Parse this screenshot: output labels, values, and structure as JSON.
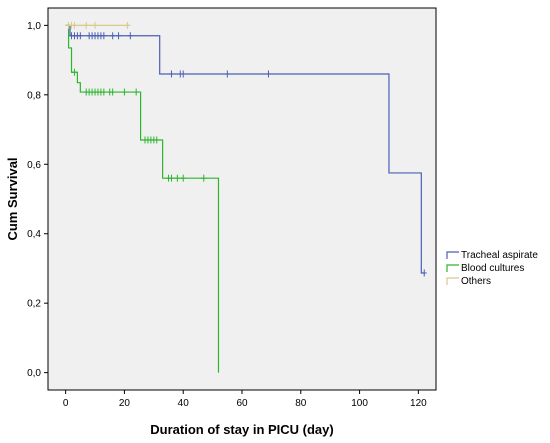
{
  "chart_data": {
    "type": "line",
    "subtype": "kaplan-meier-step",
    "title": "",
    "xlabel": "Duration of stay in PICU (day)",
    "ylabel": "Cum Survival",
    "xlim": [
      -6,
      126
    ],
    "ylim": [
      -0.05,
      1.05
    ],
    "x_ticks": [
      0,
      20,
      40,
      60,
      80,
      100,
      120
    ],
    "x_tick_labels": [
      "0",
      "20",
      "40",
      "60",
      "80",
      "100",
      "120"
    ],
    "y_ticks": [
      0,
      0.2,
      0.4,
      0.6,
      0.8,
      1.0
    ],
    "y_tick_labels": [
      "0,0",
      "0,2",
      "0,4",
      "0,6",
      "0,8",
      "1,0"
    ],
    "grid": false,
    "legend_position": "right",
    "plot_background": "#f0f0f0",
    "series": [
      {
        "name": "Tracheal aspirate",
        "color": "#4a5fb5",
        "steps": [
          [
            0,
            1.0
          ],
          [
            1.5,
            0.97
          ],
          [
            32,
            0.86
          ],
          [
            110,
            0.575
          ],
          [
            121,
            0.287
          ]
        ],
        "x_end": 122,
        "censored": [
          [
            2,
            0.97
          ],
          [
            3,
            0.97
          ],
          [
            4,
            0.97
          ],
          [
            5,
            0.97
          ],
          [
            8,
            0.97
          ],
          [
            9,
            0.97
          ],
          [
            10,
            0.97
          ],
          [
            11,
            0.97
          ],
          [
            12,
            0.97
          ],
          [
            13,
            0.97
          ],
          [
            16,
            0.97
          ],
          [
            18,
            0.97
          ],
          [
            22,
            0.97
          ],
          [
            36,
            0.86
          ],
          [
            39,
            0.86
          ],
          [
            40,
            0.86
          ],
          [
            55,
            0.86
          ],
          [
            69,
            0.86
          ],
          [
            122,
            0.287
          ]
        ]
      },
      {
        "name": "Blood cultures",
        "color": "#2db52d",
        "steps": [
          [
            0,
            1.0
          ],
          [
            1,
            0.935
          ],
          [
            2,
            0.865
          ],
          [
            4,
            0.835
          ],
          [
            5,
            0.808
          ],
          [
            25.5,
            0.67
          ],
          [
            33,
            0.56
          ],
          [
            52,
            0.0
          ]
        ],
        "x_end": 52,
        "censored": [
          [
            3,
            0.865
          ],
          [
            7,
            0.808
          ],
          [
            8,
            0.808
          ],
          [
            9,
            0.808
          ],
          [
            10,
            0.808
          ],
          [
            11,
            0.808
          ],
          [
            12,
            0.808
          ],
          [
            13,
            0.808
          ],
          [
            15,
            0.808
          ],
          [
            16,
            0.808
          ],
          [
            20,
            0.808
          ],
          [
            24,
            0.808
          ],
          [
            27,
            0.67
          ],
          [
            28,
            0.67
          ],
          [
            29,
            0.67
          ],
          [
            30,
            0.67
          ],
          [
            31,
            0.67
          ],
          [
            35,
            0.56
          ],
          [
            36,
            0.56
          ],
          [
            38,
            0.56
          ],
          [
            40,
            0.56
          ],
          [
            47,
            0.56
          ]
        ]
      },
      {
        "name": "Others",
        "color": "#d9c98a",
        "steps": [
          [
            0,
            1.0
          ]
        ],
        "x_end": 22,
        "censored": [
          [
            1,
            1.0
          ],
          [
            2,
            1.0
          ],
          [
            3,
            1.0
          ],
          [
            7,
            1.0
          ],
          [
            10,
            1.0
          ],
          [
            21,
            1.0
          ]
        ]
      }
    ]
  }
}
